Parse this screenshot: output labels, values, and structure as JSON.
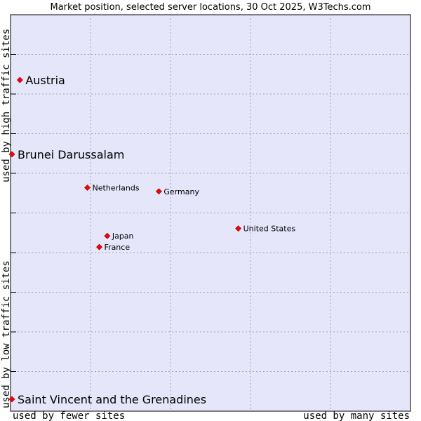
{
  "chart_data": {
    "type": "scatter",
    "title": "Market position, selected server locations, 30 Oct 2025, W3Techs.com",
    "xlabel_low": "used by fewer sites",
    "xlabel_high": "used by many sites",
    "ylabel_low": "used by low traffic sites",
    "ylabel_high": "used by high traffic sites",
    "xlim": [
      0,
      10
    ],
    "ylim": [
      0,
      10
    ],
    "grid": true,
    "marker_color": "#ff0000",
    "plot_background": "#e6e6fa",
    "points": [
      {
        "label": "Austria",
        "x": 0.2,
        "y": 8.6,
        "label_style": "large"
      },
      {
        "label": "Brunei Darussalam",
        "x": 0.0,
        "y": 6.6,
        "label_style": "large"
      },
      {
        "label": "Netherlands",
        "x": 1.9,
        "y": 5.7,
        "label_style": "small"
      },
      {
        "label": "Germany",
        "x": 3.7,
        "y": 5.6,
        "label_style": "small"
      },
      {
        "label": "United States",
        "x": 5.7,
        "y": 4.6,
        "label_style": "small"
      },
      {
        "label": "Japan",
        "x": 2.4,
        "y": 4.4,
        "label_style": "small"
      },
      {
        "label": "France",
        "x": 2.2,
        "y": 4.1,
        "label_style": "small"
      },
      {
        "label": "Saint Vincent and the Grenadines",
        "x": 0.0,
        "y": 0.0,
        "label_style": "large"
      }
    ]
  }
}
